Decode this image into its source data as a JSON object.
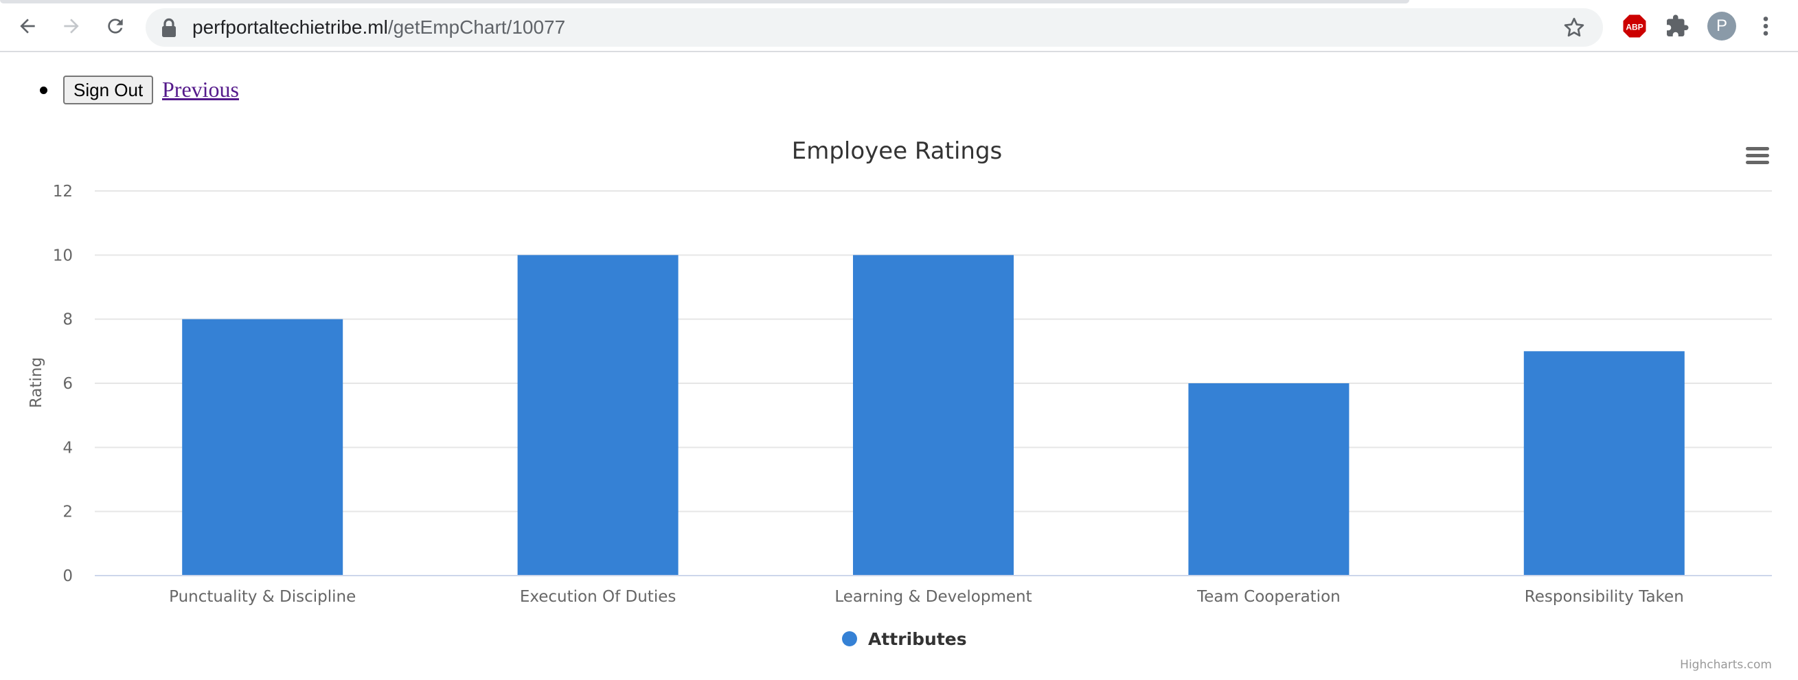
{
  "browser": {
    "url_host": "perfportaltechietribe.ml",
    "url_path": "/getEmpChart/10077",
    "profile_initial": "P",
    "adblock_label": "ABP"
  },
  "page": {
    "signout_label": "Sign Out",
    "previous_label": "Previous"
  },
  "chart_data": {
    "type": "bar",
    "title": "Employee Ratings",
    "ylabel": "Rating",
    "xlabel": "",
    "categories": [
      "Punctuality & Discipline",
      "Execution Of Duties",
      "Learning & Development",
      "Team Cooperation",
      "Responsibility Taken"
    ],
    "series": [
      {
        "name": "Attributes",
        "values": [
          8,
          10,
          10,
          6,
          7
        ],
        "color": "#3581d5"
      }
    ],
    "ylim": [
      0,
      12
    ],
    "yticks": [
      0,
      2,
      4,
      6,
      8,
      10,
      12
    ],
    "grid": true,
    "legend": "bottom-center",
    "credits": "Highcharts.com"
  },
  "colors": {
    "bar": "#3581d5",
    "grid": "#e6e6e6",
    "axis_line": "#ccd6eb",
    "link_visited": "#551a8b",
    "adblock_red": "#cc0000"
  }
}
